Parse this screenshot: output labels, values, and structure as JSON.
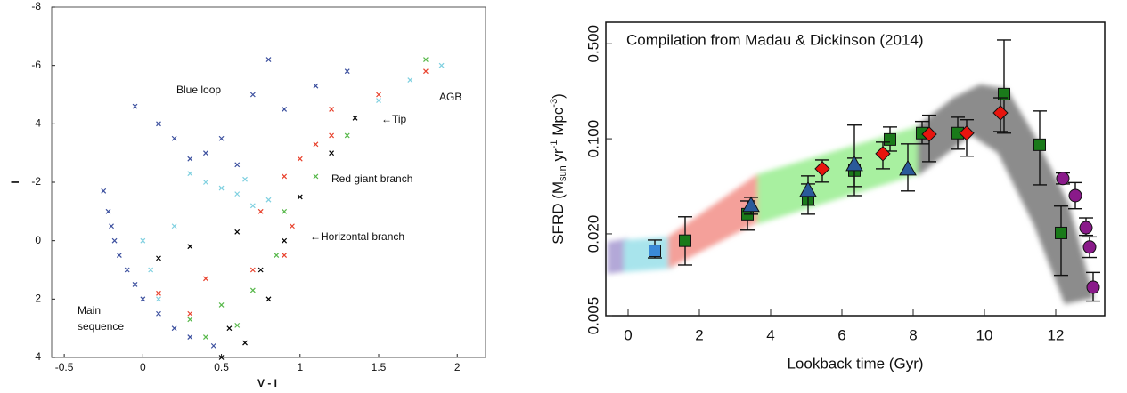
{
  "chart_data": [
    {
      "type": "scatter",
      "x_label": "V - I",
      "y_label": "I",
      "xlim": [
        -0.58,
        2.18
      ],
      "xticks": [
        -0.5,
        0,
        0.5,
        1,
        1.5,
        2
      ],
      "ylim": [
        -8,
        4
      ],
      "y_inverted": true,
      "yticks": [
        -8,
        -6,
        -4,
        -2,
        0,
        2,
        4
      ],
      "annotations": [
        "Blue loop",
        "AGB",
        "←Tip",
        "Red giant branch",
        "←Horizontal branch",
        "Main",
        "sequence"
      ],
      "series": [
        {
          "color": "#3b4f9e",
          "x": [
            -0.25,
            -0.22,
            -0.2,
            -0.18,
            -0.15,
            -0.1,
            -0.05,
            0,
            0.1,
            0.2,
            0.3,
            0.45,
            -0.05,
            0.1,
            0.2,
            0.4,
            0.3,
            0.6,
            0.5,
            0.7,
            0.9,
            1.1,
            1.3,
            0.8
          ],
          "values": [
            -1.7,
            -1,
            -0.5,
            0,
            0.5,
            1,
            1.5,
            2,
            2.5,
            3,
            3.3,
            3.6,
            -4.6,
            -4,
            -3.5,
            -3,
            -2.8,
            -2.6,
            -3.5,
            -5,
            -4.5,
            -5.3,
            -5.8,
            -6.2
          ]
        },
        {
          "color": "#7fd0e0",
          "x": [
            0.4,
            0.6,
            0.7,
            0.5,
            0.8,
            0.2,
            0,
            0.05,
            0.1,
            1.5,
            1.7,
            1.9,
            0.3,
            0.65
          ],
          "values": [
            -2,
            -1.6,
            -1.2,
            -1.8,
            -1.4,
            -0.5,
            0,
            1,
            2,
            -4.8,
            -5.5,
            -6,
            -2.3,
            -2.1
          ]
        },
        {
          "color": "#e8412c",
          "x": [
            0.9,
            1.0,
            1.1,
            1.2,
            0.95,
            0.9,
            0.7,
            0.4,
            0.1,
            0.3,
            1.2,
            1.5,
            1.8,
            0.75
          ],
          "values": [
            -2.2,
            -2.8,
            -3.3,
            -3.6,
            -0.5,
            0.5,
            1,
            1.3,
            1.8,
            2.5,
            -4.5,
            -5,
            -5.8,
            -1.0
          ]
        },
        {
          "color": "#57b84a",
          "x": [
            0.85,
            0.7,
            0.5,
            0.3,
            0.4,
            0.9,
            1.1,
            1.3,
            1.8,
            0.6
          ],
          "values": [
            0.5,
            1.7,
            2.2,
            2.7,
            3.3,
            -1,
            -2.2,
            -3.6,
            -6.2,
            2.9
          ]
        },
        {
          "color": "#000000",
          "x": [
            0.9,
            1.0,
            1.2,
            0.8,
            0.65,
            0.5,
            0.3,
            0.6,
            0.1,
            1.35,
            0.75,
            0.55
          ],
          "values": [
            0,
            -1.5,
            -3,
            2,
            3.5,
            4,
            0.2,
            -0.3,
            0.6,
            -4.2,
            1.0,
            3.0
          ]
        }
      ]
    },
    {
      "type": "scatter",
      "y_log": true,
      "title": "Compilation from Madau & Dickinson (2014)",
      "x_label": "Lookback time (Gyr)",
      "y_label_parts": [
        "SFRD (M",
        "sun",
        " yr",
        "-1",
        " Mpc",
        "-3",
        ")"
      ],
      "xlim": [
        -0.625,
        13.375
      ],
      "xticks": [
        0,
        2,
        4,
        6,
        8,
        10,
        12
      ],
      "ylim": [
        0.005,
        0.72
      ],
      "yticks": [
        {
          "value": 0.005,
          "label": "0.005"
        },
        {
          "value": 0.02,
          "label": "0.020"
        },
        {
          "value": 0.1,
          "label": "0.100"
        },
        {
          "value": 0.5,
          "label": "0.500"
        }
      ],
      "series": [
        {
          "marker": "square",
          "color": "#3a8ad8",
          "x": [
            0.75
          ],
          "values": [
            0.015
          ],
          "lower": [
            0.0133
          ],
          "upper": [
            0.018
          ]
        },
        {
          "marker": "square",
          "color": "#1a7a1a",
          "x": [
            1.6,
            3.35,
            5.05,
            6.35,
            7.35,
            8.25,
            9.25,
            10.55,
            11.55,
            12.15
          ],
          "values": [
            0.0178,
            0.0279,
            0.0361,
            0.0584,
            0.0988,
            0.11,
            0.11,
            0.213,
            0.0903,
            0.0203
          ],
          "lower": [
            0.0118,
            0.0213,
            0.0279,
            0.0445,
            0.0811,
            0.0917,
            0.0838,
            0.11,
            0.0458,
            0.0099
          ],
          "upper": [
            0.0267,
            0.0349,
            0.0465,
            0.072,
            0.122,
            0.134,
            0.144,
            0.533,
            0.16,
            0.032
          ]
        },
        {
          "marker": "triangle",
          "color": "#2a5a9a",
          "x": [
            3.45,
            5.05,
            6.35,
            7.85
          ],
          "values": [
            0.0325,
            0.0419,
            0.0648,
            0.0601
          ],
          "lower": [
            0.0279,
            0.0325,
            0.0382,
            0.0413
          ],
          "upper": [
            0.0371,
            0.0533,
            0.126,
            0.0917
          ]
        },
        {
          "marker": "diamond",
          "color": "#e8140e",
          "x": [
            5.45,
            7.15,
            8.45,
            9.5,
            10.45
          ],
          "values": [
            0.0601,
            0.0777,
            0.108,
            0.11,
            0.155
          ],
          "lower": [
            0.048,
            0.0601,
            0.0678,
            0.0744,
            0.113
          ],
          "upper": [
            0.0698,
            0.0945,
            0.149,
            0.138,
            0.2
          ]
        },
        {
          "marker": "circle",
          "color": "#8a1a8a",
          "x": [
            12.2,
            12.55,
            12.85,
            12.95,
            13.05
          ],
          "values": [
            0.051,
            0.0382,
            0.0222,
            0.016,
            0.0081
          ],
          "lower": [
            0.0465,
            0.0306,
            0.0195,
            0.0134,
            0.0064
          ],
          "upper": [
            0.056,
            0.0476,
            0.0262,
            0.019,
            0.0104
          ]
        }
      ]
    }
  ]
}
